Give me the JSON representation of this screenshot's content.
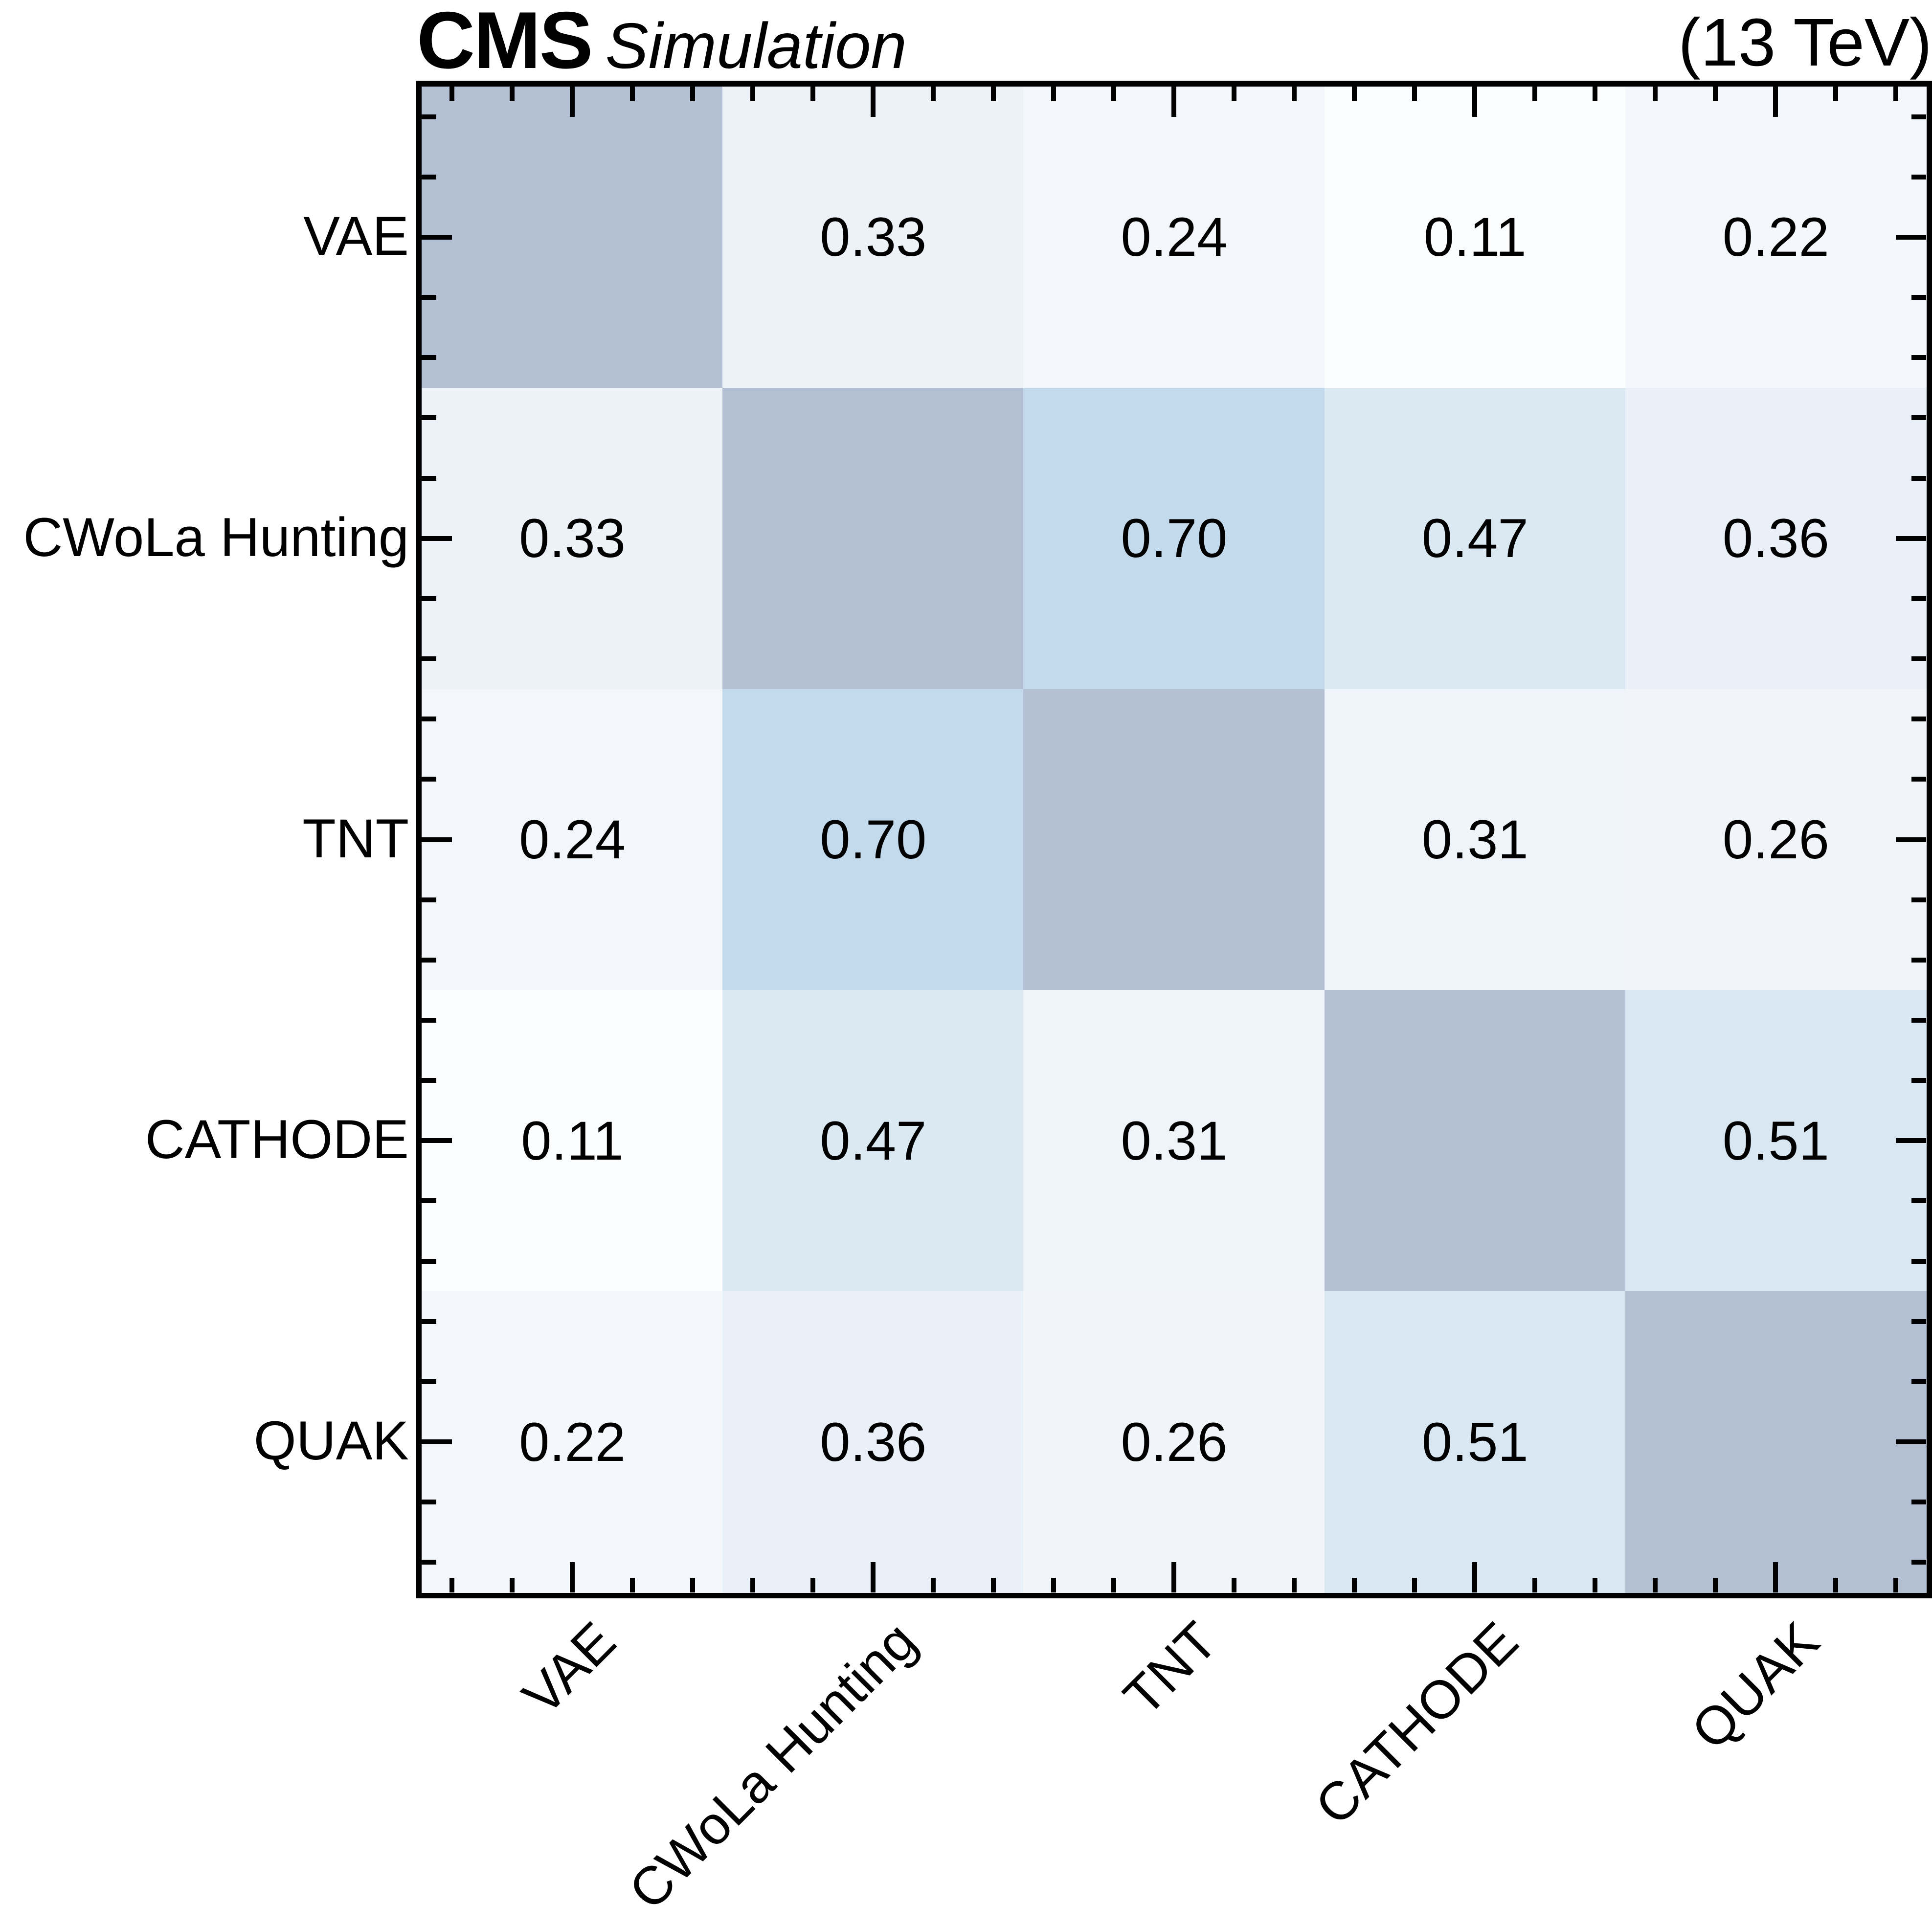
{
  "header": {
    "experiment": "CMS",
    "label": "Simulation",
    "energy": "(13 TeV)"
  },
  "chart_data": {
    "type": "heatmap",
    "title": "CMS Simulation (13 TeV) correlation matrix of anomaly-detection methods",
    "categories": [
      "VAE",
      "CWoLa Hunting",
      "TNT",
      "CATHODE",
      "QUAK"
    ],
    "matrix": [
      [
        1.0,
        0.33,
        0.24,
        0.11,
        0.22
      ],
      [
        0.33,
        1.0,
        0.7,
        0.47,
        0.36
      ],
      [
        0.24,
        0.7,
        1.0,
        0.31,
        0.26
      ],
      [
        0.11,
        0.47,
        0.31,
        1.0,
        0.51
      ],
      [
        0.22,
        0.36,
        0.26,
        0.51,
        1.0
      ]
    ],
    "cell_labels": [
      [
        "",
        "0.33",
        "0.24",
        "0.11",
        "0.22"
      ],
      [
        "0.33",
        "",
        "0.70",
        "0.47",
        "0.36"
      ],
      [
        "0.24",
        "0.70",
        "",
        "0.31",
        "0.26"
      ],
      [
        "0.11",
        "0.47",
        "0.31",
        "",
        "0.51"
      ],
      [
        "0.22",
        "0.36",
        "0.26",
        "0.51",
        ""
      ]
    ],
    "cell_colors": [
      [
        "#b4c0d4",
        "#edf2f9",
        "#f3f6fa",
        "#fbfdfe",
        "#f4f7fb"
      ],
      [
        "#edf2f9",
        "#b4c0d4",
        "#c3daed",
        "#dbe9f3",
        "#eaf0f8"
      ],
      [
        "#f3f6fa",
        "#c3daed",
        "#b4c0d4",
        "#eff3fa",
        "#f1f4f9"
      ],
      [
        "#fbfdfe",
        "#dbe9f3",
        "#eff3fa",
        "#b4c0d4",
        "#d8e7f2"
      ],
      [
        "#f4f7fb",
        "#eaf0f8",
        "#f1f4f9",
        "#d8e7f2",
        "#b4c0d4"
      ]
    ],
    "diagonal_color": "#b4c0d4",
    "value_text_color": "#000000",
    "axis": {
      "tick_color": "#000000",
      "ticks_per_cell": 5,
      "major_tick_at": "cell-center",
      "ticks_on_sides": [
        "top",
        "bottom",
        "left",
        "right"
      ],
      "grid": false,
      "legend": "none"
    }
  }
}
